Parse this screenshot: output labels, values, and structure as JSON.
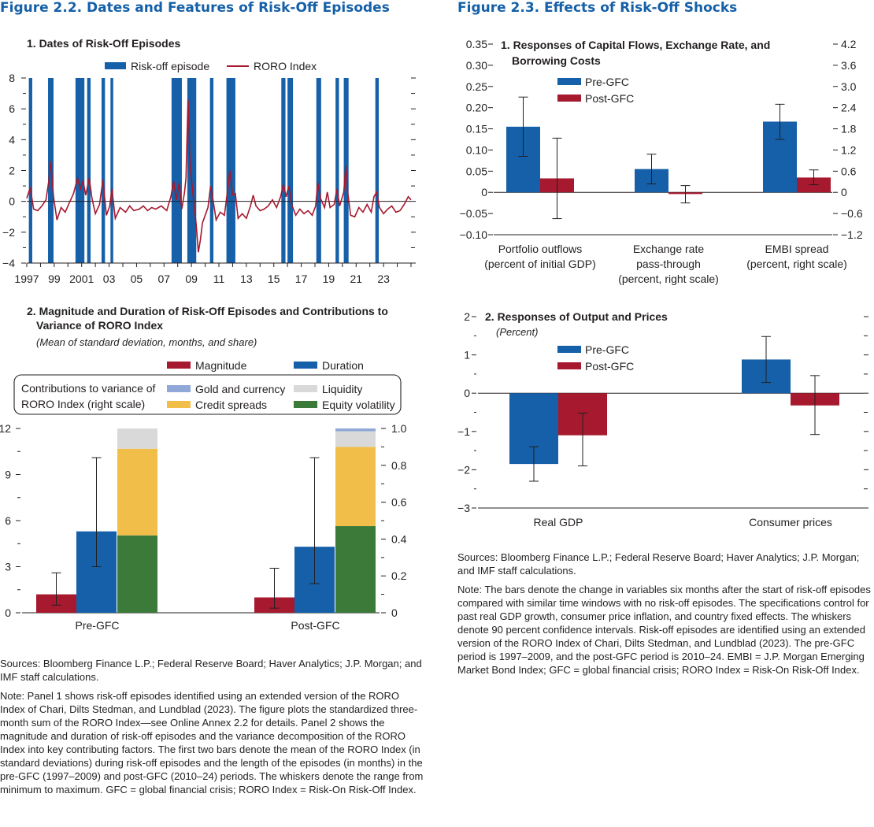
{
  "fig22": {
    "title": "Figure 2.2.  Dates and Features of Risk-Off Episodes",
    "panel1": {
      "title": "1. Dates of Risk-Off Episodes",
      "legend_bar": "Risk-off episode",
      "legend_line": "RORO Index"
    },
    "panel2": {
      "title": "2. Magnitude and Duration of Risk-Off Episodes and Contributions to",
      "title2": "Variance of RORO Index",
      "subtitle": "(Mean of standard deviation, months, and share)",
      "legend_magnitude": "Magnitude",
      "legend_duration": "Duration",
      "legend_box_label1": "Contributions to variance of",
      "legend_box_label2": "RORO Index (right scale)",
      "legend_gold": "Gold and currency",
      "legend_credit": "Credit spreads",
      "legend_liquidity": "Liquidity",
      "legend_equity": "Equity volatility"
    },
    "sources": "Sources: Bloomberg Finance L.P.; Federal Reserve Board; Haver Analytics; J.P. Morgan; and IMF staff calculations.",
    "note": "Note: Panel 1 shows risk-off episodes identified using an extended version of the RORO Index of Chari, Dilts Stedman, and Lundblad (2023). The figure plots the standardized three-month sum of the RORO Index—see Online Annex 2.2 for details. Panel 2 shows the magnitude and duration of risk-off episodes and the variance decomposition of the RORO Index into key contributing factors. The first two bars denote the mean of the RORO Index (in standard deviations) during risk-off episodes and the length of the episodes (in months) in the pre-GFC (1997–2009) and post-GFC (2010–24) periods. The whiskers denote the range from minimum to maximum. GFC = global financial crisis; RORO Index = Risk-On Risk-Off Index."
  },
  "fig23": {
    "title": "Figure 2.3.  Effects of Risk-Off Shocks",
    "panel1": {
      "title": "1. Responses of Capital Flows, Exchange Rate, and",
      "title2": "Borrowing Costs",
      "legend_pre": "Pre-GFC",
      "legend_post": "Post-GFC"
    },
    "panel2": {
      "title": "2. Responses of Output and Prices",
      "subtitle": "(Percent)",
      "legend_pre": "Pre-GFC",
      "legend_post": "Post-GFC"
    },
    "sources": "Sources: Bloomberg Finance L.P.; Federal Reserve Board; Haver Analytics; J.P. Morgan; and IMF staff calculations.",
    "note": "Note: The bars denote the change in variables six months after the start of risk-off episodes compared with similar time windows with no risk-off episodes. The specifications control for past real GDP growth, consumer price inflation, and country fixed effects. The whiskers denote 90 percent confidence intervals. Risk-off episodes are identified using an extended version of the RORO Index of Chari, Dilts Stedman, and Lundblad (2023). The pre-GFC period is 1997–2009, and the post-GFC period is 2010–24. EMBI = J.P. Morgan Emerging Market Bond Index; GFC = global financial crisis; RORO Index = Risk-On Risk-Off Index."
  },
  "colors": {
    "blue": "#1560a8",
    "red": "#a6192e",
    "gold": "#f2be4a",
    "green": "#3c7a3a",
    "liquidity": "#d9d9d9",
    "goldcur": "#8fa8d8",
    "axis": "#231f20"
  },
  "chart_data": [
    {
      "id": "fig22-panel1",
      "type": "line",
      "title": "1. Dates of Risk-Off Episodes",
      "xlim": [
        1997,
        2025
      ],
      "ylim": [
        -4,
        8
      ],
      "yticks": [
        -4,
        -2,
        0,
        2,
        4,
        6,
        8
      ],
      "xtick_values": [
        1997,
        1999,
        2001,
        2003,
        2005,
        2007,
        2009,
        2011,
        2013,
        2015,
        2017,
        2019,
        2021,
        2023
      ],
      "xtick_labels": [
        "1997",
        "99",
        "2001",
        "03",
        "05",
        "07",
        "09",
        "11",
        "13",
        "15",
        "17",
        "19",
        "21",
        "23"
      ],
      "episodes": [
        [
          1997.15,
          1997.4
        ],
        [
          1998.55,
          1998.95
        ],
        [
          2000.55,
          2001.2
        ],
        [
          2001.4,
          2001.65
        ],
        [
          2002.45,
          2002.7
        ],
        [
          2003.1,
          2003.3
        ],
        [
          2007.55,
          2008.3
        ],
        [
          2008.7,
          2009.35
        ],
        [
          2010.35,
          2010.6
        ],
        [
          2011.55,
          2012.2
        ],
        [
          2015.55,
          2015.85
        ],
        [
          2016.0,
          2016.4
        ],
        [
          2018.1,
          2018.45
        ],
        [
          2019.5,
          2019.75
        ],
        [
          2020.1,
          2020.45
        ],
        [
          2022.4,
          2022.65
        ]
      ],
      "roro_index": [
        [
          1997.0,
          0.2
        ],
        [
          1997.25,
          0.9
        ],
        [
          1997.5,
          -0.5
        ],
        [
          1997.8,
          -0.6
        ],
        [
          1998.1,
          -0.3
        ],
        [
          1998.4,
          0.1
        ],
        [
          1998.6,
          1.3
        ],
        [
          1998.75,
          2.6
        ],
        [
          1998.95,
          0.3
        ],
        [
          1999.2,
          -1.2
        ],
        [
          1999.5,
          -0.4
        ],
        [
          1999.8,
          -0.7
        ],
        [
          2000.1,
          -0.1
        ],
        [
          2000.4,
          0.5
        ],
        [
          2000.7,
          1.5
        ],
        [
          2000.9,
          0.8
        ],
        [
          2001.1,
          1.3
        ],
        [
          2001.3,
          0.4
        ],
        [
          2001.55,
          1.5
        ],
        [
          2001.75,
          0.2
        ],
        [
          2002.0,
          -0.8
        ],
        [
          2002.3,
          -0.2
        ],
        [
          2002.55,
          1.4
        ],
        [
          2002.8,
          -0.9
        ],
        [
          2003.05,
          -0.3
        ],
        [
          2003.2,
          0.8
        ],
        [
          2003.45,
          -1.1
        ],
        [
          2003.8,
          -0.4
        ],
        [
          2004.2,
          -0.7
        ],
        [
          2004.5,
          -0.3
        ],
        [
          2004.8,
          -0.6
        ],
        [
          2005.2,
          -0.5
        ],
        [
          2005.5,
          -0.3
        ],
        [
          2005.8,
          -0.6
        ],
        [
          2006.1,
          -0.4
        ],
        [
          2006.4,
          -0.5
        ],
        [
          2006.8,
          -0.3
        ],
        [
          2007.2,
          -0.6
        ],
        [
          2007.5,
          0.3
        ],
        [
          2007.7,
          1.3
        ],
        [
          2007.9,
          0.1
        ],
        [
          2008.1,
          1.2
        ],
        [
          2008.3,
          -0.5
        ],
        [
          2008.5,
          0.6
        ],
        [
          2008.6,
          1.5
        ],
        [
          2008.75,
          6.6
        ],
        [
          2008.9,
          2.4
        ],
        [
          2009.05,
          1.0
        ],
        [
          2009.2,
          -0.3
        ],
        [
          2009.35,
          -1.5
        ],
        [
          2009.5,
          -3.3
        ],
        [
          2009.65,
          -2.5
        ],
        [
          2009.8,
          -1.4
        ],
        [
          2010.0,
          -0.9
        ],
        [
          2010.2,
          -0.4
        ],
        [
          2010.4,
          1.0
        ],
        [
          2010.55,
          0.2
        ],
        [
          2010.8,
          -1.2
        ],
        [
          2011.1,
          -0.7
        ],
        [
          2011.4,
          -0.9
        ],
        [
          2011.6,
          0.5
        ],
        [
          2011.8,
          2.0
        ],
        [
          2012.0,
          0.4
        ],
        [
          2012.2,
          0.5
        ],
        [
          2012.4,
          -1.1
        ],
        [
          2012.7,
          -0.8
        ],
        [
          2013.0,
          -1.1
        ],
        [
          2013.3,
          -0.3
        ],
        [
          2013.5,
          0.4
        ],
        [
          2013.7,
          -0.3
        ],
        [
          2014.0,
          -0.6
        ],
        [
          2014.3,
          -0.5
        ],
        [
          2014.6,
          -0.3
        ],
        [
          2014.9,
          0.1
        ],
        [
          2015.2,
          -0.4
        ],
        [
          2015.5,
          0.3
        ],
        [
          2015.7,
          1.1
        ],
        [
          2015.9,
          0.3
        ],
        [
          2016.1,
          1.0
        ],
        [
          2016.3,
          -0.2
        ],
        [
          2016.6,
          -0.9
        ],
        [
          2016.9,
          -0.5
        ],
        [
          2017.2,
          -0.8
        ],
        [
          2017.5,
          -0.6
        ],
        [
          2017.8,
          -0.9
        ],
        [
          2018.05,
          -0.3
        ],
        [
          2018.2,
          1.2
        ],
        [
          2018.4,
          0.2
        ],
        [
          2018.7,
          -0.4
        ],
        [
          2018.9,
          0.6
        ],
        [
          2019.1,
          -0.4
        ],
        [
          2019.4,
          -0.2
        ],
        [
          2019.6,
          0.8
        ],
        [
          2019.8,
          -0.3
        ],
        [
          2020.1,
          0.6
        ],
        [
          2020.25,
          2.3
        ],
        [
          2020.4,
          0.5
        ],
        [
          2020.6,
          -0.9
        ],
        [
          2020.9,
          -1.0
        ],
        [
          2021.2,
          -0.4
        ],
        [
          2021.5,
          -0.7
        ],
        [
          2021.8,
          -0.2
        ],
        [
          2022.1,
          -0.7
        ],
        [
          2022.3,
          0.3
        ],
        [
          2022.5,
          0.6
        ],
        [
          2022.7,
          -0.4
        ],
        [
          2023.0,
          -0.8
        ],
        [
          2023.3,
          -0.5
        ],
        [
          2023.6,
          -0.3
        ],
        [
          2023.9,
          -0.7
        ],
        [
          2024.2,
          -0.6
        ],
        [
          2024.5,
          -0.2
        ],
        [
          2024.8,
          0.3
        ],
        [
          2025.0,
          0.1
        ]
      ]
    },
    {
      "id": "fig22-panel2",
      "type": "bar",
      "title": "2. Magnitude and Duration of Risk-Off Episodes and Contributions to Variance of RORO Index",
      "categories": [
        "Pre-GFC",
        "Post-GFC"
      ],
      "ylim_left": [
        0,
        12
      ],
      "yticks_left": [
        0,
        3,
        6,
        9,
        12
      ],
      "ylim_right": [
        0,
        1.0
      ],
      "yticks_right": [
        "0",
        "0.2",
        "0.4",
        "0.6",
        "0.8",
        "1.0"
      ],
      "series": [
        {
          "name": "Magnitude",
          "values": [
            1.2,
            1.0
          ],
          "range_min": [
            0.5,
            0.3
          ],
          "range_max": [
            2.6,
            2.9
          ],
          "axis": "left"
        },
        {
          "name": "Duration",
          "values": [
            5.3,
            4.3
          ],
          "range_min": [
            3.0,
            1.9
          ],
          "range_max": [
            10.1,
            10.1
          ],
          "axis": "left"
        }
      ],
      "stacked_right": [
        {
          "name": "Equity volatility",
          "values": [
            0.42,
            0.47
          ]
        },
        {
          "name": "Credit spreads",
          "values": [
            0.47,
            0.43
          ]
        },
        {
          "name": "Liquidity",
          "values": [
            0.11,
            0.085
          ]
        },
        {
          "name": "Gold and currency",
          "values": [
            0.0,
            0.015
          ]
        }
      ]
    },
    {
      "id": "fig23-panel1",
      "type": "bar",
      "title": "1. Responses of Capital Flows, Exchange Rate, and Borrowing Costs",
      "categories": [
        "Portfolio outflows\n(percent of initial GDP)",
        "Exchange rate\npass-through\n(percent, right scale)",
        "EMBI spread\n(percent, right scale)"
      ],
      "ylim_left": [
        -0.1,
        0.35
      ],
      "yticks_left": [
        "−0.10",
        "−0.05",
        "0",
        "0.05",
        "0.10",
        "0.15",
        "0.20",
        "0.25",
        "0.30",
        "0.35"
      ],
      "ylim_right": [
        -1.2,
        4.2
      ],
      "yticks_right": [
        "−1.2",
        "−0.6",
        "0",
        "0.6",
        "1.2",
        "1.8",
        "2.4",
        "3.0",
        "3.6",
        "4.2"
      ],
      "series": [
        {
          "name": "Pre-GFC",
          "values": [
            0.155,
            0.055,
            0.167
          ],
          "ci_low": [
            0.085,
            0.02,
            0.125
          ],
          "ci_high": [
            0.225,
            0.09,
            0.208
          ]
        },
        {
          "name": "Post-GFC",
          "values": [
            0.033,
            -0.004,
            0.035
          ],
          "ci_low": [
            -0.062,
            -0.025,
            0.018
          ],
          "ci_high": [
            0.128,
            0.016,
            0.053
          ]
        }
      ]
    },
    {
      "id": "fig23-panel2",
      "type": "bar",
      "title": "2. Responses of Output and Prices",
      "ylabel": "(Percent)",
      "categories": [
        "Real GDP",
        "Consumer prices"
      ],
      "ylim": [
        -3,
        2
      ],
      "yticks": [
        "−3",
        "−2",
        "−1",
        "0",
        "1",
        "2"
      ],
      "series": [
        {
          "name": "Pre-GFC",
          "values": [
            -1.85,
            0.88
          ],
          "ci_low": [
            -2.3,
            0.28
          ],
          "ci_high": [
            -1.4,
            1.48
          ]
        },
        {
          "name": "Post-GFC",
          "values": [
            -1.1,
            -0.32
          ],
          "ci_low": [
            -1.9,
            -1.08
          ],
          "ci_high": [
            -0.52,
            0.46
          ]
        }
      ]
    }
  ]
}
